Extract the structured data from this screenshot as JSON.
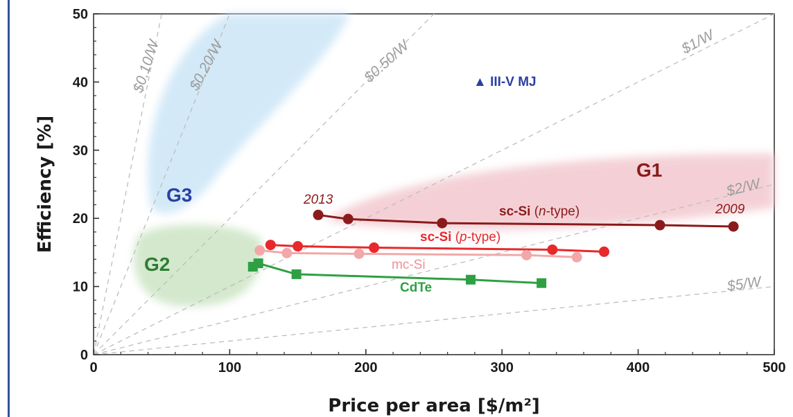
{
  "chart_data": {
    "type": "scatter",
    "xlabel": "Price per area [$/m²]",
    "ylabel": "Efficiency [%]",
    "xlim": [
      0,
      500
    ],
    "ylim": [
      0,
      50
    ],
    "x_ticks": [
      "0",
      "100",
      "200",
      "300",
      "400",
      "500"
    ],
    "y_ticks": [
      "0",
      "10",
      "20",
      "30",
      "40",
      "50"
    ],
    "grid": false,
    "series": [
      {
        "name": "sc-Si (n-type)",
        "color": "#8b1a1a",
        "marker": "circle",
        "points": [
          [
            165,
            20.5
          ],
          [
            187,
            19.9
          ],
          [
            256,
            19.3
          ],
          [
            416,
            19.0
          ],
          [
            470,
            18.8
          ]
        ]
      },
      {
        "name": "sc-Si (p-type)",
        "color": "#e8282b",
        "marker": "circle",
        "points": [
          [
            130,
            16.1
          ],
          [
            150,
            15.9
          ],
          [
            206,
            15.7
          ],
          [
            337,
            15.4
          ],
          [
            375,
            15.1
          ]
        ]
      },
      {
        "name": "mc-Si",
        "color": "#f2a8a8",
        "marker": "circle",
        "points": [
          [
            122,
            15.3
          ],
          [
            142,
            14.9
          ],
          [
            195,
            14.8
          ],
          [
            318,
            14.6
          ],
          [
            355,
            14.3
          ]
        ]
      },
      {
        "name": "CdTe",
        "color": "#2ea043",
        "marker": "square",
        "points": [
          [
            117,
            12.9
          ],
          [
            121,
            13.4
          ],
          [
            149,
            11.8
          ],
          [
            277,
            11.0
          ],
          [
            329,
            10.5
          ]
        ]
      },
      {
        "name": "III-V MJ",
        "color": "#2b3fa3",
        "marker": "triangle",
        "points": [
          [
            280,
            40.2
          ]
        ]
      }
    ],
    "cost_lines": [
      {
        "label": "$0.10/W",
        "cost": 0.1
      },
      {
        "label": "$0.20/W",
        "cost": 0.2
      },
      {
        "label": "$0.50/W",
        "cost": 0.5
      },
      {
        "label": "$1/W",
        "cost": 1
      },
      {
        "label": "$2/W",
        "cost": 2
      },
      {
        "label": "$5/W",
        "cost": 5
      }
    ],
    "regions": [
      {
        "label": "G1",
        "color": "#f3ccd2",
        "text_color": "#8b1a1a"
      },
      {
        "label": "G2",
        "color": "#cfe6c8",
        "text_color": "#2e7d32"
      },
      {
        "label": "G3",
        "color": "#cfe7f7",
        "text_color": "#2b3fa3"
      }
    ],
    "annotations": {
      "year_start": "2013",
      "year_end": "2009",
      "sc_si_n": {
        "bold": "sc-Si",
        "pre": "(",
        "ital": "n",
        "post": "-type)"
      },
      "sc_si_p": {
        "bold": "sc-Si",
        "pre": "(",
        "ital": "p",
        "post": "-type)"
      },
      "mc_si": "mc-Si",
      "cdte": "CdTe",
      "iii_v": "▲ III-V MJ"
    }
  }
}
